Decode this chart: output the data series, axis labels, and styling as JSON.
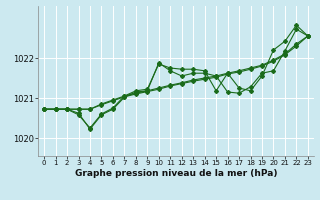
{
  "title": "Graphe pression niveau de la mer (hPa)",
  "bg_color": "#cce9f0",
  "grid_color": "#ffffff",
  "line_color": "#1a6b1a",
  "xlim": [
    -0.5,
    23.5
  ],
  "ylim": [
    1019.55,
    1023.3
  ],
  "yticks": [
    1020,
    1021,
    1022
  ],
  "xticks": [
    0,
    1,
    2,
    3,
    4,
    5,
    6,
    7,
    8,
    9,
    10,
    11,
    12,
    13,
    14,
    15,
    16,
    17,
    18,
    19,
    20,
    21,
    22,
    23
  ],
  "series_straight": [
    1020.72,
    1020.72,
    1020.72,
    1020.72,
    1020.72,
    1020.85,
    1020.95,
    1021.05,
    1021.12,
    1021.18,
    1021.25,
    1021.32,
    1021.38,
    1021.45,
    1021.5,
    1021.55,
    1021.62,
    1021.68,
    1021.75,
    1021.82,
    1021.95,
    1022.1,
    1022.35,
    1022.55
  ],
  "series_straight2": [
    1020.72,
    1020.72,
    1020.72,
    1020.72,
    1020.72,
    1020.83,
    1020.93,
    1021.03,
    1021.1,
    1021.16,
    1021.22,
    1021.3,
    1021.36,
    1021.42,
    1021.47,
    1021.52,
    1021.6,
    1021.65,
    1021.72,
    1021.8,
    1021.92,
    1022.08,
    1022.3,
    1022.55
  ],
  "series_wiggly1": [
    1020.72,
    1020.72,
    1020.72,
    1020.58,
    1020.25,
    1020.6,
    1020.75,
    1021.05,
    1021.18,
    1021.22,
    1021.85,
    1021.75,
    1021.72,
    1021.72,
    1021.68,
    1021.18,
    1021.62,
    1021.25,
    1021.18,
    1021.55,
    1022.2,
    1022.42,
    1022.82,
    1022.55
  ],
  "series_wiggly2": [
    1020.72,
    1020.72,
    1020.72,
    1020.62,
    1020.22,
    1020.58,
    1020.72,
    1021.02,
    1021.15,
    1021.18,
    1021.88,
    1021.68,
    1021.55,
    1021.62,
    1021.62,
    1021.55,
    1021.15,
    1021.12,
    1021.28,
    1021.62,
    1021.68,
    1022.18,
    1022.72,
    1022.55
  ]
}
